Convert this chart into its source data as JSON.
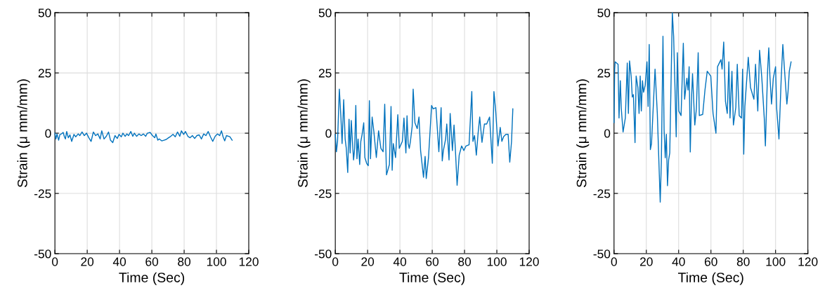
{
  "chart_data": [
    {
      "type": "line",
      "xlabel": "Time (Sec)",
      "ylabel": "Strain (μ mm/mm)",
      "xlim": [
        0,
        120
      ],
      "xticks": [
        0,
        20,
        40,
        60,
        80,
        100,
        120
      ],
      "ylim": [
        -50,
        50
      ],
      "yticks": [
        -50,
        -25,
        0,
        25,
        50
      ],
      "grid": true,
      "series": [
        {
          "color": "#0072bd",
          "x": [
            0,
            0.6,
            1.3,
            2.3,
            3.1,
            4.1,
            5.1,
            5.9,
            6.5,
            7.3,
            8.3,
            9.3,
            10.4,
            11.8,
            12.9,
            14.4,
            15.4,
            16.8,
            18.2,
            19.6,
            21.0,
            22.4,
            23.8,
            25.2,
            26.6,
            28.0,
            29.0,
            30.4,
            31.8,
            33.2,
            34.4,
            35.8,
            37.2,
            38.6,
            39.7,
            41.1,
            42.1,
            43.5,
            44.5,
            45.6,
            47.0,
            48.2,
            49.2,
            50.6,
            52.0,
            53.4,
            54.8,
            56.2,
            57.2,
            59.0,
            60.4,
            61.8,
            62.5,
            63.7,
            64.6,
            66.1,
            67.5,
            68.9,
            70.3,
            71.7,
            73.1,
            74.5,
            75.9,
            77.3,
            78.3,
            79.7,
            80.8,
            82.3,
            83.7,
            85.1,
            86.5,
            87.9,
            89.3,
            90.7,
            92.1,
            93.5,
            94.9,
            96.3,
            97.7,
            99.2,
            100.6,
            102.0,
            103.1,
            104.1,
            105.1,
            106.2,
            107.6,
            108.3,
            109.7
          ],
          "values": [
            0,
            -2.4,
            -0.3,
            -2.9,
            -0.5,
            -0.3,
            0.3,
            -1.5,
            -2.4,
            0.7,
            -1.9,
            -0.7,
            -3.4,
            -0.5,
            -1.5,
            -0.3,
            -1.0,
            0.5,
            -1.0,
            0,
            -1.9,
            -3.4,
            0.5,
            -1.0,
            -0.3,
            -2.4,
            1.0,
            -2.4,
            -1.3,
            0.5,
            -2.9,
            -3.9,
            -1.0,
            -2.2,
            -0.5,
            -1.5,
            0,
            -1.3,
            -0.3,
            -1.0,
            0.7,
            -1.3,
            0,
            -1.3,
            -0.3,
            -1.0,
            -0.3,
            -1.3,
            0,
            0.3,
            -1.0,
            -1.9,
            -0.3,
            -2.9,
            -2.4,
            -3.2,
            -2.9,
            -2.6,
            -1.9,
            -1.3,
            -0.5,
            -1.5,
            0.5,
            -1.3,
            1.0,
            -0.5,
            0.7,
            -1.3,
            -1.9,
            -1.0,
            -2.2,
            -1.0,
            -0.7,
            -2.4,
            -0.3,
            -1.0,
            0.7,
            -1.5,
            -3.4,
            -1.3,
            -0.3,
            -1.0,
            1.0,
            -1.5,
            -3.2,
            -1.0,
            -1.3,
            -1.5,
            -2.9
          ]
        }
      ]
    },
    {
      "type": "line",
      "xlabel": "Time (Sec)",
      "ylabel": "Strain (μ mm/mm)",
      "xlim": [
        0,
        120
      ],
      "xticks": [
        0,
        20,
        40,
        60,
        80,
        100,
        120
      ],
      "ylim": [
        -50,
        50
      ],
      "yticks": [
        -50,
        -25,
        0,
        25,
        50
      ],
      "grid": true,
      "series": [
        {
          "color": "#0072bd",
          "x": [
            0,
            0.7,
            1.4,
            2.5,
            3.5,
            4.2,
            5.2,
            6.1,
            6.8,
            7.7,
            8.5,
            9.2,
            9.9,
            10.6,
            11.3,
            12.0,
            12.7,
            13.4,
            14.1,
            15.1,
            15.8,
            16.6,
            17.6,
            18.3,
            19.4,
            20.4,
            21.1,
            21.8,
            22.8,
            23.9,
            25.4,
            26.8,
            28.2,
            29.6,
            30.6,
            31.7,
            32.7,
            33.5,
            34.5,
            35.2,
            35.9,
            37.3,
            38.7,
            39.6,
            41.5,
            42.5,
            43.7,
            44.4,
            45.1,
            45.8,
            46.5,
            47.6,
            48.2,
            49.3,
            50.7,
            51.8,
            52.8,
            54.6,
            55.6,
            56.3,
            57.7,
            59.6,
            60.6,
            62.3,
            64.1,
            65.5,
            66.2,
            66.9,
            68.3,
            69.0,
            70.4,
            71.1,
            72.5,
            73.5,
            74.3,
            75.4,
            76.7,
            78.2,
            79.6,
            80.9,
            82.8,
            84.5,
            85.2,
            86.2,
            87.3,
            88.4,
            89.4,
            90.8,
            92.3,
            93.7,
            95.5,
            97.2,
            98.2,
            99.3,
            100.7,
            102.1,
            103.1,
            104.2,
            105.6,
            107.0,
            108.0,
            109.1,
            109.9
          ],
          "values": [
            -0.5,
            -7.7,
            -3.4,
            18.3,
            6.3,
            -4.3,
            13.9,
            -2.4,
            -6.3,
            -16.3,
            5.8,
            -8.2,
            5.3,
            -3.4,
            -11.1,
            -6.3,
            11.5,
            -10.6,
            -2.4,
            -13.0,
            -3.4,
            -0.5,
            4.3,
            -10.1,
            -12.5,
            -13.5,
            13.5,
            -10.6,
            6.7,
            0.5,
            -10.1,
            1.0,
            -6.3,
            -7.7,
            12.0,
            -17.3,
            -14.9,
            -13.0,
            11.1,
            -15.4,
            -4.3,
            -10.1,
            7.7,
            -6.3,
            -3.4,
            6.3,
            -8.2,
            7.2,
            -4.3,
            -6.3,
            -3.4,
            2.9,
            18.3,
            4.3,
            1.9,
            6.7,
            -7.2,
            -18.3,
            -9.6,
            -18.8,
            -10.1,
            11.5,
            10.1,
            10.6,
            -7.7,
            10.6,
            -11.5,
            -7.2,
            -2.4,
            3.8,
            -11.1,
            8.2,
            -7.2,
            3.4,
            -6.3,
            -21.6,
            -9.1,
            -5.3,
            -7.2,
            -5.3,
            -4.8,
            17.3,
            -3.4,
            -1.0,
            -9.1,
            0,
            6.7,
            -3.8,
            3.8,
            3.8,
            6.7,
            -12.5,
            17.3,
            9.1,
            -5.3,
            2.4,
            -3.4,
            -1.4,
            -0.5,
            -0.5,
            -12.0,
            -3.4,
            10.1
          ]
        }
      ]
    },
    {
      "type": "line",
      "xlabel": "Time (Sec)",
      "ylabel": "Strain (μ mm/mm)",
      "xlim": [
        0,
        120
      ],
      "xticks": [
        0,
        20,
        40,
        60,
        80,
        100,
        120
      ],
      "ylim": [
        -50,
        50
      ],
      "yticks": [
        -50,
        -25,
        0,
        25,
        50
      ],
      "grid": true,
      "series": [
        {
          "color": "#0072bd",
          "x": [
            0,
            0.4,
            0.7,
            2.5,
            3.1,
            3.9,
            4.5,
            5.6,
            7.0,
            8.2,
            8.9,
            9.6,
            10.6,
            11.3,
            12.0,
            13.0,
            13.7,
            14.8,
            15.5,
            16.2,
            16.9,
            17.6,
            18.3,
            19.3,
            20.4,
            21.1,
            21.8,
            22.5,
            23.2,
            25.4,
            26.8,
            28.6,
            29.3,
            30.3,
            31.0,
            31.7,
            32.4,
            33.1,
            33.8,
            34.5,
            35.2,
            36.1,
            36.9,
            37.7,
            38.5,
            39.2,
            40.1,
            41.5,
            42.9,
            43.7,
            45.1,
            45.8,
            46.5,
            47.2,
            47.9,
            48.6,
            50.0,
            51.0,
            52.1,
            52.8,
            54.9,
            56.3,
            57.7,
            59.9,
            61.3,
            63.1,
            64.1,
            66.2,
            66.9,
            67.9,
            69.0,
            70.1,
            71.1,
            71.8,
            73.0,
            73.9,
            75.4,
            76.3,
            77.5,
            78.9,
            79.6,
            80.3,
            81.0,
            83.1,
            84.5,
            86.6,
            87.6,
            89.0,
            90.1,
            91.5,
            93.0,
            93.7,
            95.1,
            95.8,
            96.5,
            97.5,
            98.6,
            100.0,
            100.7,
            102.1,
            103.5,
            104.5,
            105.6,
            107.0,
            107.7,
            108.5,
            109.6
          ],
          "values": [
            4.4,
            26.6,
            29.6,
            28.6,
            6.3,
            21.8,
            10.2,
            0.5,
            6.3,
            29.1,
            8.2,
            30.0,
            23.7,
            15.0,
            16.0,
            -3.9,
            23.7,
            18.9,
            8.2,
            23.7,
            9.2,
            21.8,
            17.0,
            19.9,
            29.6,
            11.1,
            36.8,
            -6.8,
            -4.4,
            26.6,
            8.2,
            -28.6,
            -12.1,
            40.2,
            1.5,
            -10.2,
            -0.5,
            -21.8,
            -11.1,
            -8.2,
            17.0,
            49.9,
            40.2,
            19.9,
            -1.5,
            33.4,
            9.2,
            7.3,
            37.3,
            14.1,
            22.8,
            17.9,
            27.6,
            -7.8,
            13.1,
            24.7,
            3.4,
            10.2,
            33.4,
            7.3,
            7.8,
            17.9,
            25.7,
            23.7,
            8.2,
            0,
            27.6,
            30.5,
            26.6,
            37.8,
            13.1,
            8.2,
            29.6,
            6.3,
            25.7,
            3.4,
            10.7,
            28.6,
            7.3,
            6.3,
            26.6,
            -8.7,
            11.1,
            31.5,
            18.9,
            14.1,
            28.6,
            9.2,
            34.4,
            22.8,
            6.3,
            -5.3,
            26.6,
            35.4,
            23.7,
            12.1,
            22.8,
            27.6,
            10.2,
            -2.4,
            22.8,
            36.8,
            25.7,
            12.1,
            17.0,
            25.7,
            29.6
          ]
        }
      ]
    }
  ]
}
